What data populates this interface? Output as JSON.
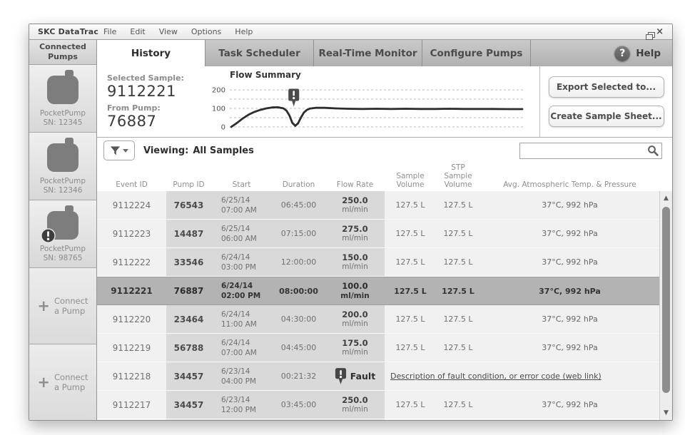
{
  "titlebar": {
    "app_title": "SKC DataTrac",
    "menu": [
      "File",
      "Edit",
      "View",
      "Options",
      "Help"
    ]
  },
  "icons": {
    "help": "?",
    "connect_plus": "+",
    "close": "×",
    "minimize": "_",
    "restore": "❐",
    "scroll_up": "▲",
    "scroll_down": "▼",
    "alert": "!",
    "filter": "funnel",
    "search": "magnifier"
  },
  "sidebar": {
    "header": "Connected Pumps",
    "pumps": [
      {
        "model": "PocketPump",
        "sn": "SN: 12345",
        "alert": false
      },
      {
        "model": "PocketPump",
        "sn": "SN: 12346",
        "alert": false
      },
      {
        "model": "PocketPump",
        "sn": "SN: 98765",
        "alert": true
      }
    ],
    "connect_line1": "Connect",
    "connect_line2": "a Pump"
  },
  "tabs": [
    {
      "label": "History",
      "active": true
    },
    {
      "label": "Task Scheduler",
      "active": false
    },
    {
      "label": "Real-Time Monitor",
      "active": false
    },
    {
      "label": "Configure Pumps",
      "active": false
    }
  ],
  "help_tab": {
    "label": "Help"
  },
  "summary": {
    "selected_sample_label": "Selected Sample:",
    "selected_sample_value": "9112221",
    "from_pump_label": "From Pump:",
    "from_pump_value": "76887",
    "export_button": "Export Selected to...",
    "create_button": "Create Sample Sheet..."
  },
  "chart_data": {
    "type": "line",
    "title": "Flow Summary",
    "xlabel": "",
    "ylabel": "",
    "yticks": [
      200,
      100,
      0
    ],
    "ylim": [
      0,
      240
    ],
    "gridline_values": [
      0,
      50,
      100,
      150,
      200
    ],
    "grid": "dashed-horizontal",
    "legend_position": "none",
    "series": [
      {
        "name": "flow-rate-ml-min",
        "points": [
          [
            0,
            0
          ],
          [
            2,
            22
          ],
          [
            4,
            46
          ],
          [
            6,
            66
          ],
          [
            8,
            81
          ],
          [
            10,
            92
          ],
          [
            12,
            100
          ],
          [
            14,
            105
          ],
          [
            16,
            106
          ],
          [
            18,
            100
          ],
          [
            19,
            88
          ],
          [
            20,
            62
          ],
          [
            21,
            22
          ],
          [
            22,
            6
          ],
          [
            23,
            20
          ],
          [
            24,
            52
          ],
          [
            25,
            78
          ],
          [
            26,
            92
          ],
          [
            27,
            99
          ],
          [
            29,
            103
          ],
          [
            32,
            103
          ],
          [
            36,
            100
          ],
          [
            40,
            98
          ],
          [
            45,
            97
          ],
          [
            50,
            98
          ],
          [
            55,
            97
          ],
          [
            60,
            98
          ],
          [
            65,
            97
          ],
          [
            70,
            97
          ],
          [
            75,
            98
          ],
          [
            80,
            97
          ],
          [
            85,
            97
          ],
          [
            90,
            97
          ],
          [
            95,
            96
          ],
          [
            100,
            96
          ]
        ]
      }
    ],
    "fault_marker": {
      "x": 21.5,
      "icon": "alert-pin"
    }
  },
  "filter_bar": {
    "viewing_label": "Viewing:",
    "viewing_value": "All Samples",
    "search_value": ""
  },
  "table": {
    "columns": [
      "Event ID",
      "Pump ID",
      "Start",
      "Duration",
      "Flow Rate",
      "Sample\nVolume",
      "STP Sample\nVolume",
      "Avg. Atmospheric Temp. & Pressure"
    ],
    "rows": [
      {
        "event_id": "9112224",
        "pump_id": "76543",
        "start_date": "6/25/14",
        "start_time": "07:00 AM",
        "duration": "06:45:00",
        "flow_rate": "250.0",
        "flow_unit": "ml/min",
        "sample_volume": "127.5 L",
        "stp_volume": "127.5 L",
        "atm": "37°C, 992 hPa",
        "selected": false,
        "fault": false
      },
      {
        "event_id": "9112223",
        "pump_id": "14487",
        "start_date": "6/25/14",
        "start_time": "06:00 AM",
        "duration": "07:15:00",
        "flow_rate": "275.0",
        "flow_unit": "ml/min",
        "sample_volume": "127.5 L",
        "stp_volume": "127.5 L",
        "atm": "37°C, 992 hPa",
        "selected": false,
        "fault": false
      },
      {
        "event_id": "9112222",
        "pump_id": "33546",
        "start_date": "6/24/14",
        "start_time": "03:00 PM",
        "duration": "12:00:00",
        "flow_rate": "150.0",
        "flow_unit": "ml/min",
        "sample_volume": "127.5 L",
        "stp_volume": "127.5 L",
        "atm": "37°C, 992 hPa",
        "selected": false,
        "fault": false
      },
      {
        "event_id": "9112221",
        "pump_id": "76887",
        "start_date": "6/24/14",
        "start_time": "02:00 PM",
        "duration": "08:00:00",
        "flow_rate": "100.0",
        "flow_unit": "ml/min",
        "sample_volume": "127.5 L",
        "stp_volume": "127.5 L",
        "atm": "37°C, 992 hPa",
        "selected": true,
        "fault": false
      },
      {
        "event_id": "9112220",
        "pump_id": "23464",
        "start_date": "6/24/14",
        "start_time": "11:00 AM",
        "duration": "04:30:00",
        "flow_rate": "200.0",
        "flow_unit": "ml/min",
        "sample_volume": "127.5 L",
        "stp_volume": "127.5 L",
        "atm": "37°C, 992 hPa",
        "selected": false,
        "fault": false
      },
      {
        "event_id": "9112219",
        "pump_id": "56788",
        "start_date": "6/24/14",
        "start_time": "07:00 AM",
        "duration": "04:45:00",
        "flow_rate": "175.0",
        "flow_unit": "ml/min",
        "sample_volume": "127.5 L",
        "stp_volume": "127.5 L",
        "atm": "37°C, 992 hPa",
        "selected": false,
        "fault": false
      },
      {
        "event_id": "9112218",
        "pump_id": "34457",
        "start_date": "6/23/14",
        "start_time": "04:00 PM",
        "duration": "00:21:32",
        "fault_label": "Fault",
        "fault_link": "Description of fault condition, or error code (web link)",
        "selected": false,
        "fault": true
      },
      {
        "event_id": "9112217",
        "pump_id": "34457",
        "start_date": "6/23/14",
        "start_time": "12:00 PM",
        "duration": "03:45:00",
        "flow_rate": "250.0",
        "flow_unit": "ml/min",
        "sample_volume": "127.5 L",
        "stp_volume": "127.5 L",
        "atm": "37°C, 992 hPa",
        "selected": false,
        "fault": false
      }
    ]
  },
  "colors": {
    "band": "#d9d9d9",
    "selected_row": "#b3b3b3",
    "chart_line": "#2c2c2c",
    "alert_dark": "#4a4a4a",
    "tab_inactive": "#bdbdbd"
  }
}
